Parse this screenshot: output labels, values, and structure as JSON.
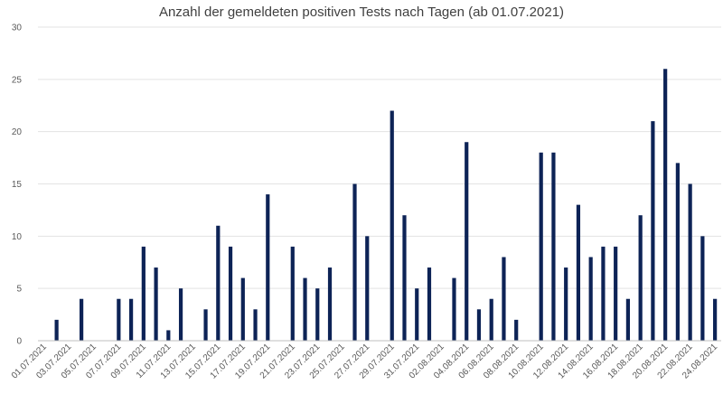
{
  "chart_data": {
    "type": "bar",
    "title": "Anzahl der gemeldeten positiven Tests nach Tagen (ab 01.07.2021)",
    "xlabel": "",
    "ylabel": "",
    "ylim": [
      0,
      30
    ],
    "yticks": [
      0,
      5,
      10,
      15,
      20,
      25,
      30
    ],
    "grid": true,
    "legend": "none",
    "bar_color": "#0d2356",
    "categories": [
      "01.07.2021",
      "02.07.2021",
      "03.07.2021",
      "04.07.2021",
      "05.07.2021",
      "06.07.2021",
      "07.07.2021",
      "08.07.2021",
      "09.07.2021",
      "10.07.2021",
      "11.07.2021",
      "12.07.2021",
      "13.07.2021",
      "14.07.2021",
      "15.07.2021",
      "16.07.2021",
      "17.07.2021",
      "18.07.2021",
      "19.07.2021",
      "20.07.2021",
      "21.07.2021",
      "22.07.2021",
      "23.07.2021",
      "24.07.2021",
      "25.07.2021",
      "26.07.2021",
      "27.07.2021",
      "28.07.2021",
      "29.07.2021",
      "30.07.2021",
      "31.07.2021",
      "01.08.2021",
      "02.08.2021",
      "03.08.2021",
      "04.08.2021",
      "05.08.2021",
      "06.08.2021",
      "07.08.2021",
      "08.08.2021",
      "09.08.2021",
      "10.08.2021",
      "11.08.2021",
      "12.08.2021",
      "13.08.2021",
      "14.08.2021",
      "15.08.2021",
      "16.08.2021",
      "17.08.2021",
      "18.08.2021",
      "19.08.2021",
      "20.08.2021",
      "21.08.2021",
      "22.08.2021",
      "23.08.2021",
      "24.08.2021"
    ],
    "xtick_labels": [
      "01.07.2021",
      "03.07.2021",
      "05.07.2021",
      "07.07.2021",
      "09.07.2021",
      "11.07.2021",
      "13.07.2021",
      "15.07.2021",
      "17.07.2021",
      "19.07.2021",
      "21.07.2021",
      "23.07.2021",
      "25.07.2021",
      "27.07.2021",
      "29.07.2021",
      "31.07.2021",
      "02.08.2021",
      "04.08.2021",
      "06.08.2021",
      "08.08.2021",
      "10.08.2021",
      "12.08.2021",
      "14.08.2021",
      "16.08.2021",
      "18.08.2021",
      "20.08.2021",
      "22.08.2021",
      "24.08.2021"
    ],
    "values": [
      0,
      2,
      0,
      4,
      0,
      0,
      4,
      4,
      9,
      7,
      1,
      5,
      0,
      3,
      11,
      9,
      6,
      3,
      14,
      0,
      9,
      6,
      5,
      7,
      0,
      15,
      10,
      0,
      22,
      12,
      5,
      7,
      0,
      6,
      19,
      3,
      4,
      8,
      2,
      0,
      18,
      18,
      7,
      13,
      8,
      9,
      9,
      4,
      12,
      21,
      26,
      17,
      15,
      10,
      4
    ]
  }
}
